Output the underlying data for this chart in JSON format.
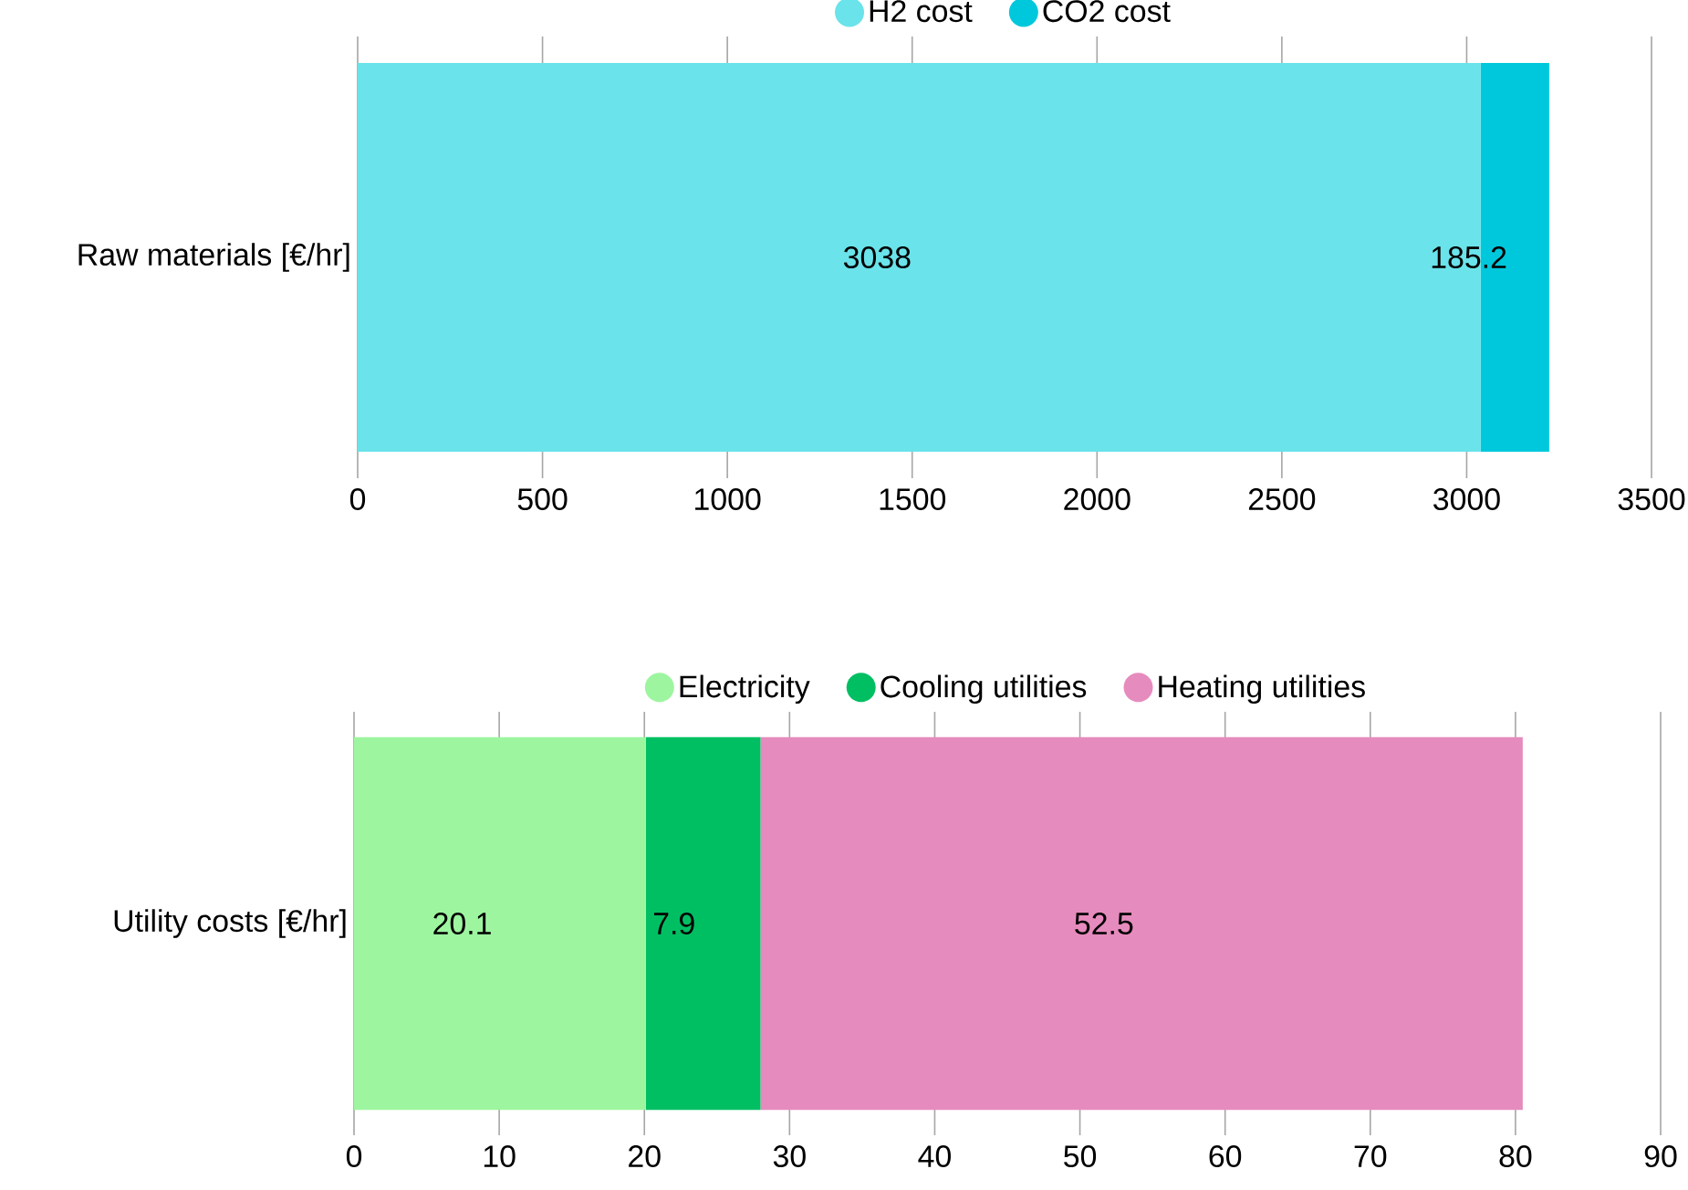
{
  "chart_data": [
    {
      "type": "bar",
      "orientation": "horizontal",
      "stacked": true,
      "categories": [
        "Raw materials [€/hr]"
      ],
      "series": [
        {
          "name": "H2 cost",
          "color": "#6ae3ea",
          "values": [
            3038
          ]
        },
        {
          "name": "CO2 cost",
          "color": "#00c8dc",
          "values": [
            185.2
          ]
        }
      ],
      "xlim": [
        0,
        3500
      ],
      "xticks": [
        0,
        500,
        1000,
        1500,
        2000,
        2500,
        3000,
        3500
      ],
      "grid": "x",
      "legend": "top",
      "data_labels": true
    },
    {
      "type": "bar",
      "orientation": "horizontal",
      "stacked": true,
      "categories": [
        "Utility costs [€/hr]"
      ],
      "series": [
        {
          "name": "Electricity",
          "color": "#9ef5a0",
          "values": [
            20.1
          ]
        },
        {
          "name": "Cooling utilities",
          "color": "#00bf63",
          "values": [
            7.9
          ]
        },
        {
          "name": "Heating utilities",
          "color": "#e68bbd",
          "values": [
            52.5
          ]
        }
      ],
      "xlim": [
        0,
        90
      ],
      "xticks": [
        0,
        10,
        20,
        30,
        40,
        50,
        60,
        70,
        80,
        90
      ],
      "grid": "x",
      "legend": "top",
      "data_labels": true
    }
  ]
}
